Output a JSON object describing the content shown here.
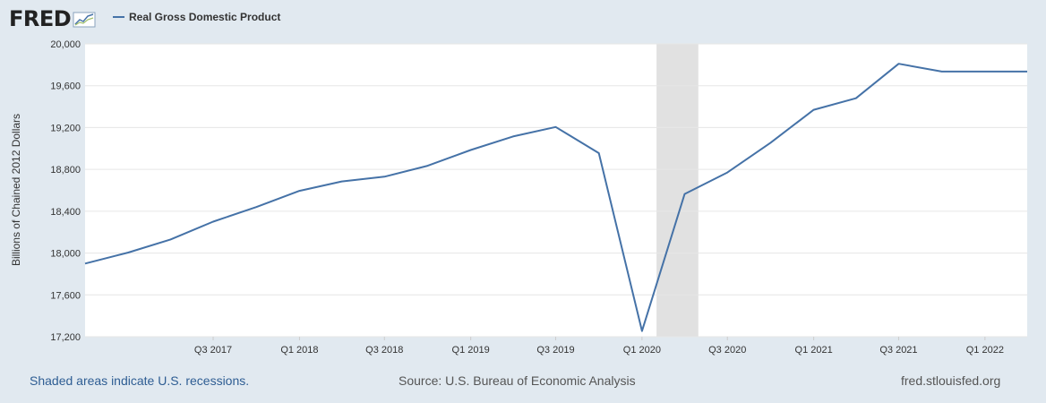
{
  "logo": {
    "text": "FRED",
    "icon": "fred-graph-icon"
  },
  "chart_data": {
    "type": "line",
    "title": "",
    "xlabel": "",
    "ylabel": "Billions of Chained 2012 Dollars",
    "ylim": [
      17200,
      20000
    ],
    "yticks": [
      17200,
      17600,
      18000,
      18400,
      18800,
      19200,
      19600,
      20000
    ],
    "ytick_labels": [
      "17,200",
      "17,600",
      "18,000",
      "18,400",
      "18,800",
      "19,200",
      "19,600",
      "20,000"
    ],
    "xticks": [
      {
        "label": "Q3 2017",
        "date": "2017-07-01"
      },
      {
        "label": "Q1 2018",
        "date": "2018-01-01"
      },
      {
        "label": "Q3 2018",
        "date": "2018-07-01"
      },
      {
        "label": "Q1 2019",
        "date": "2019-01-01"
      },
      {
        "label": "Q3 2019",
        "date": "2019-07-01"
      },
      {
        "label": "Q1 2020",
        "date": "2020-01-01"
      },
      {
        "label": "Q3 2020",
        "date": "2020-07-01"
      },
      {
        "label": "Q1 2021",
        "date": "2021-01-01"
      },
      {
        "label": "Q3 2021",
        "date": "2021-07-01"
      },
      {
        "label": "Q1 2022",
        "date": "2022-01-01"
      }
    ],
    "xlim": [
      "2016-10-01",
      "2022-04-01"
    ],
    "grid": true,
    "legend": "top-left",
    "series": [
      {
        "name": "Real Gross Domestic Product",
        "color": "#4572a7",
        "x": [
          "2016-10-01",
          "2017-01-01",
          "2017-04-01",
          "2017-07-01",
          "2017-10-01",
          "2018-01-01",
          "2018-04-01",
          "2018-07-01",
          "2018-10-01",
          "2019-01-01",
          "2019-04-01",
          "2019-07-01",
          "2019-10-01",
          "2020-01-01",
          "2020-04-01",
          "2020-07-01",
          "2020-10-01",
          "2021-01-01",
          "2021-04-01",
          "2021-07-01",
          "2021-10-01",
          "2022-01-01",
          "2022-04-01"
        ],
        "y": [
          17900,
          18005,
          18130,
          18300,
          18440,
          18595,
          18685,
          18730,
          18835,
          18985,
          19115,
          19205,
          18955,
          17255,
          18565,
          18770,
          19055,
          19370,
          19480,
          19810,
          19735,
          19735,
          19735
        ]
      }
    ],
    "recessions": [
      {
        "start": "2020-02-01",
        "end": "2020-04-30"
      }
    ]
  },
  "footer": {
    "left": "Shaded areas indicate U.S. recessions.",
    "middle": "Source: U.S. Bureau of Economic Analysis",
    "right": "fred.stlouisfed.org"
  }
}
